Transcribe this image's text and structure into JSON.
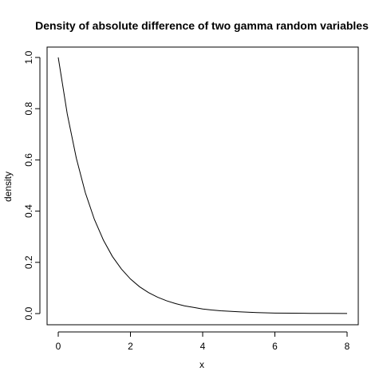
{
  "chart_data": {
    "type": "line",
    "title": "Density of absolute difference of two gamma random variables",
    "xlabel": "x",
    "ylabel": "density",
    "xlim": [
      0,
      8
    ],
    "ylim": [
      0,
      1
    ],
    "x_ticks": [
      0,
      2,
      4,
      6,
      8
    ],
    "y_ticks": [
      0.0,
      0.2,
      0.4,
      0.6,
      0.8,
      1.0
    ],
    "x_tick_labels": [
      "0",
      "2",
      "4",
      "6",
      "8"
    ],
    "y_tick_labels": [
      "0.0",
      "0.2",
      "0.4",
      "0.6",
      "0.8",
      "1.0"
    ],
    "grid": false,
    "series": [
      {
        "color": "#000000",
        "x": [
          0,
          0.25,
          0.5,
          0.75,
          1,
          1.25,
          1.5,
          1.75,
          2,
          2.25,
          2.5,
          2.75,
          3,
          3.25,
          3.5,
          3.75,
          4,
          4.25,
          4.5,
          4.75,
          5,
          5.5,
          6,
          6.5,
          7,
          7.5,
          8
        ],
        "y": [
          1.0,
          0.779,
          0.607,
          0.472,
          0.368,
          0.287,
          0.223,
          0.174,
          0.135,
          0.105,
          0.082,
          0.064,
          0.05,
          0.039,
          0.03,
          0.024,
          0.018,
          0.014,
          0.011,
          0.009,
          0.007,
          0.004,
          0.002,
          0.0015,
          0.0009,
          0.0006,
          0.0003
        ]
      }
    ]
  }
}
